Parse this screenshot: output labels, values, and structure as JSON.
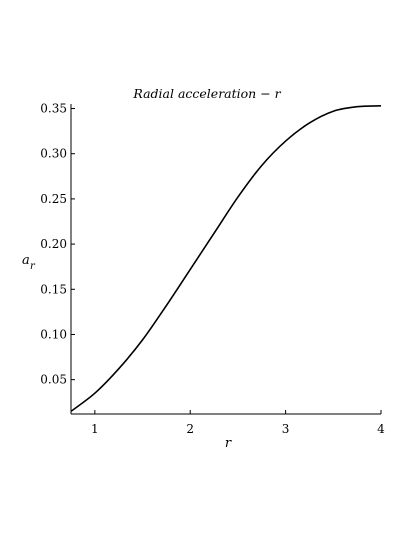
{
  "chart_data": {
    "type": "line",
    "title": "Radial acceleration − r",
    "xlabel": "r",
    "ylabel_base": "a",
    "ylabel_sub": "r",
    "xlim": [
      0.75,
      4.0
    ],
    "ylim": [
      0.012,
      0.355
    ],
    "x_ticks": [
      1,
      2,
      3,
      4
    ],
    "y_ticks": [
      0.05,
      0.1,
      0.15,
      0.2,
      0.25,
      0.3,
      0.35
    ],
    "x_tick_labels": [
      "1",
      "2",
      "3",
      "4"
    ],
    "y_tick_labels": [
      "0.05",
      "0.10",
      "0.15",
      "0.20",
      "0.25",
      "0.30",
      "0.35"
    ],
    "grid": false,
    "series": [
      {
        "x": [
          0.75,
          1.0,
          1.25,
          1.5,
          1.75,
          2.0,
          2.25,
          2.5,
          2.75,
          3.0,
          3.25,
          3.5,
          3.75,
          4.0
        ],
        "y": [
          0.015,
          0.035,
          0.062,
          0.094,
          0.132,
          0.172,
          0.212,
          0.252,
          0.287,
          0.314,
          0.334,
          0.347,
          0.352,
          0.353
        ]
      }
    ]
  }
}
